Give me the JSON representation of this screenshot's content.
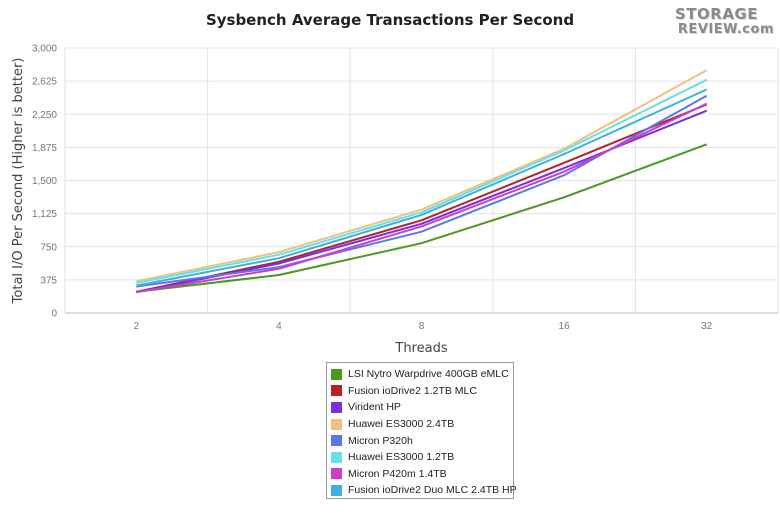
{
  "logo": {
    "line1": "STORAGE",
    "line2": "REVIEW.com"
  },
  "chart_data": {
    "type": "line",
    "title": "Sysbench Average Transactions Per Second",
    "xlabel": "Threads",
    "ylabel": "Total I/O Per Second (Higher is better)",
    "categories": [
      "2",
      "4",
      "8",
      "16",
      "32"
    ],
    "yticks": [
      "0",
      "375",
      "750",
      "1,125",
      "1,500",
      "1,875",
      "2,250",
      "2,625",
      "3,000"
    ],
    "ylim": [
      0,
      3000
    ],
    "grid": true,
    "legend_position": "bottom",
    "series": [
      {
        "name": "LSI Nytro Warpdrive 400GB eMLC",
        "color": "#4a9a1e",
        "values": [
          240,
          430,
          790,
          1310,
          1910
        ]
      },
      {
        "name": "Fusion ioDrive2 1.2TB MLC",
        "color": "#b8202e",
        "values": [
          240,
          580,
          1050,
          1700,
          2360
        ]
      },
      {
        "name": "Virident HP",
        "color": "#7a2fe0",
        "values": [
          235,
          560,
          1010,
          1640,
          2290
        ]
      },
      {
        "name": "Huawei ES3000 2.4TB",
        "color": "#f0c080",
        "values": [
          360,
          690,
          1170,
          1860,
          2750
        ]
      },
      {
        "name": "Micron P320h",
        "color": "#5a78e8",
        "values": [
          300,
          520,
          920,
          1560,
          2460
        ]
      },
      {
        "name": "Huawei ES3000 1.2TB",
        "color": "#6ae0e0",
        "values": [
          340,
          660,
          1140,
          1840,
          2640
        ]
      },
      {
        "name": "Micron P420m 1.4TB",
        "color": "#c83fc8",
        "values": [
          235,
          500,
          980,
          1600,
          2370
        ]
      },
      {
        "name": "Fusion ioDrive2 Duo MLC 2.4TB HP",
        "color": "#40b0e0",
        "values": [
          310,
          620,
          1110,
          1800,
          2530
        ]
      }
    ]
  }
}
